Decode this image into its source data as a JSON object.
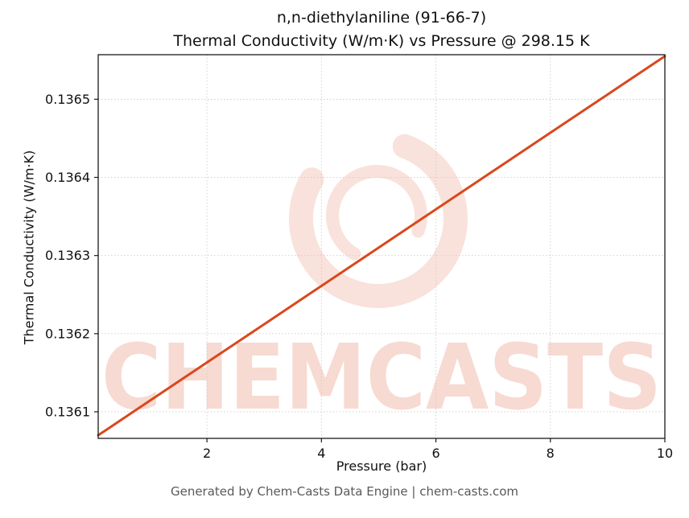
{
  "chart_data": {
    "type": "line",
    "title_line1": "n,n-diethylaniline (91-66-7)",
    "title_line2": "Thermal Conductivity (W/m·K) vs Pressure @ 298.15 K",
    "xlabel": "Pressure (bar)",
    "ylabel": "Thermal Conductivity (W/m·K)",
    "x": [
      0.1,
      1,
      2,
      3,
      4,
      5,
      6,
      7,
      8,
      9,
      10
    ],
    "y": [
      0.13607,
      0.1361141,
      0.1361631,
      0.1362121,
      0.1362611,
      0.1363101,
      0.1363591,
      0.1364081,
      0.1364571,
      0.1365061,
      0.1365551
    ],
    "xlim": [
      0.1,
      10
    ],
    "ylim": [
      0.136066,
      0.136557
    ],
    "xticks": [
      2,
      4,
      6,
      8,
      10
    ],
    "xtick_labels": [
      "2",
      "4",
      "6",
      "8",
      "10"
    ],
    "yticks": [
      0.1361,
      0.1362,
      0.1363,
      0.1364,
      0.1365
    ],
    "ytick_labels": [
      "0.1361",
      "0.1362",
      "0.1363",
      "0.1364",
      "0.1365"
    ],
    "grid": true,
    "grid_color": "#cccccc",
    "line_color": "#d9481c",
    "frame_color": "#1a1a1a",
    "legend": "none"
  },
  "watermark": {
    "text": "CHEMCASTS",
    "color": "rgba(217,72,28,0.20)",
    "logo_color": "rgba(217,72,28,0.16)"
  },
  "footer": {
    "text": "Generated by Chem-Casts Data Engine | chem-casts.com"
  }
}
